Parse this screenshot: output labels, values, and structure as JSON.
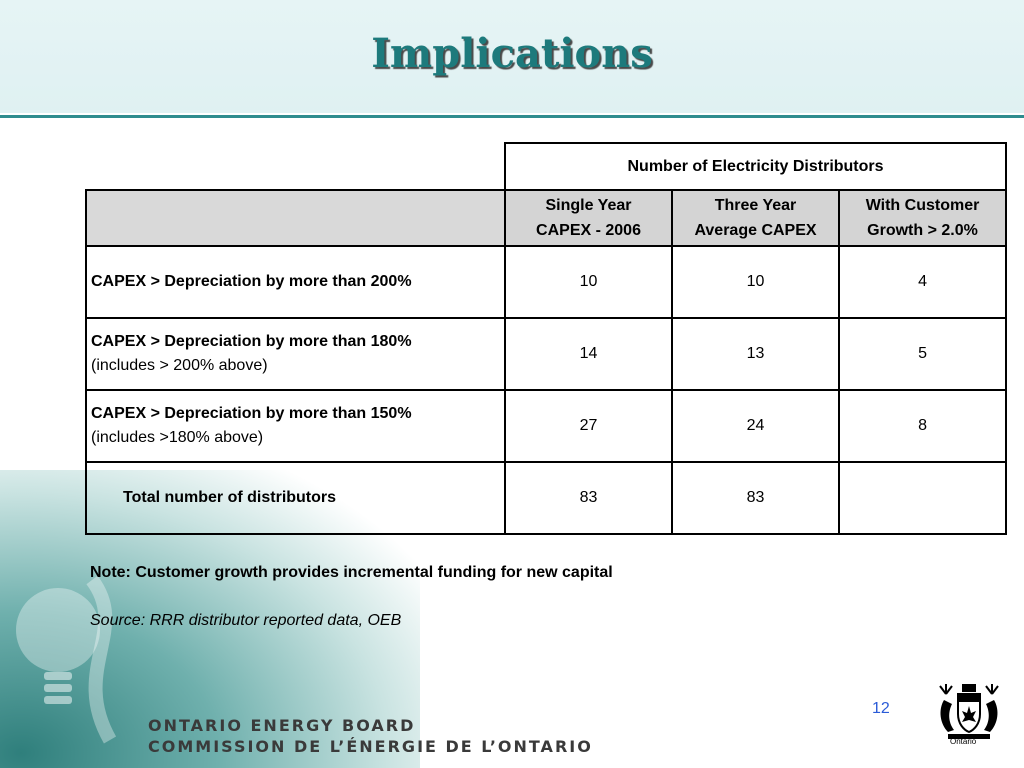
{
  "slide": {
    "title": "Implications",
    "page_number": "12"
  },
  "table": {
    "group_header": "Number of Electricity Distributors",
    "columns": [
      [
        "Single Year",
        "CAPEX - 2006"
      ],
      [
        "Three Year",
        "Average CAPEX"
      ],
      [
        "With Customer",
        "Growth > 2.0%"
      ]
    ],
    "rows": [
      {
        "label": "CAPEX > Depreciation by more than 200%",
        "sub": "",
        "values": [
          "10",
          "10",
          "4"
        ]
      },
      {
        "label": "CAPEX > Depreciation by more than 180%",
        "sub": "(includes > 200% above)",
        "values": [
          "14",
          "13",
          "5"
        ]
      },
      {
        "label": "CAPEX > Depreciation by more than 150%",
        "sub": "(includes >180% above)",
        "values": [
          "27",
          "24",
          "8"
        ]
      }
    ],
    "total": {
      "label": "Total number of distributors",
      "values": [
        "83",
        "83",
        ""
      ]
    }
  },
  "footnotes": {
    "note": "Note: Customer growth provides incremental funding for new capital",
    "source": "Source: RRR distributor reported data, OEB"
  },
  "footer": {
    "org_en": "ONTARIO ENERGY BOARD",
    "org_fr": "COMMISSION DE L’ÉNERGIE DE L’ONTARIO",
    "crest_label": "Ontario"
  },
  "colors": {
    "accent": "#1d7a7c",
    "rule": "#2e8c8e",
    "header_fill": "#d9d9d9",
    "page_number": "#2a5bd7"
  },
  "icons": [
    "lightbulb-graphic",
    "ontario-crest-icon"
  ]
}
